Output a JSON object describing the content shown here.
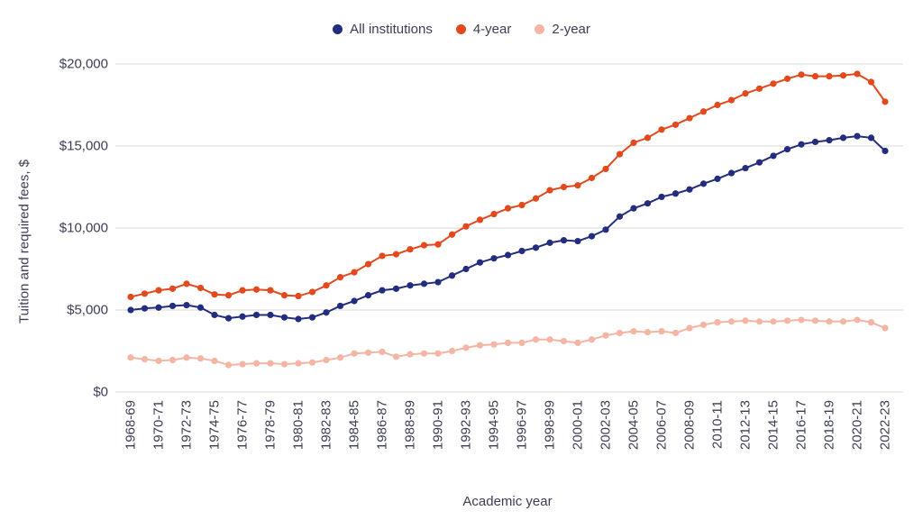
{
  "chart_data": {
    "type": "line",
    "title": "",
    "xlabel": "Academic year",
    "ylabel": "Tuition and required fees, $",
    "ylim": [
      0,
      20000
    ],
    "ytick_step": 5000,
    "ytick_labels": [
      "$0",
      "$5,000",
      "$10,000",
      "$15,000",
      "$20,000"
    ],
    "xtick_every": 2,
    "legend_position": "top",
    "grid": "horizontal",
    "colors": {
      "text": "#3c3c55",
      "grid": "#d9d9d9",
      "background": "#ffffff"
    },
    "x": [
      "1968-69",
      "1969-70",
      "1970-71",
      "1971-72",
      "1972-73",
      "1973-74",
      "1974-75",
      "1975-76",
      "1976-77",
      "1977-78",
      "1978-79",
      "1979-80",
      "1980-81",
      "1981-82",
      "1982-83",
      "1983-84",
      "1984-85",
      "1985-86",
      "1986-87",
      "1987-88",
      "1988-89",
      "1989-90",
      "1990-91",
      "1991-92",
      "1992-93",
      "1993-94",
      "1994-95",
      "1995-96",
      "1996-97",
      "1997-98",
      "1998-99",
      "1999-00",
      "2000-01",
      "2001-02",
      "2002-03",
      "2003-04",
      "2004-05",
      "2005-06",
      "2006-07",
      "2007-08",
      "2008-09",
      "2009-10",
      "2010-11",
      "2011-12",
      "2012-13",
      "2013-14",
      "2014-15",
      "2015-16",
      "2016-17",
      "2017-18",
      "2018-19",
      "2019-20",
      "2020-21",
      "2021-22",
      "2022-23"
    ],
    "series": [
      {
        "name": "All institutions",
        "color": "#232d7e",
        "values": [
          5000,
          5100,
          5150,
          5250,
          5300,
          5150,
          4700,
          4500,
          4600,
          4700,
          4700,
          4550,
          4450,
          4550,
          4850,
          5250,
          5550,
          5900,
          6200,
          6300,
          6500,
          6600,
          6700,
          7100,
          7500,
          7900,
          8150,
          8350,
          8600,
          8800,
          9100,
          9250,
          9200,
          9500,
          9900,
          10700,
          11200,
          11500,
          11900,
          12100,
          12350,
          12700,
          13000,
          13350,
          13650,
          14000,
          14400,
          14800,
          15100,
          15250,
          15350,
          15500,
          15600,
          15500,
          14700
        ]
      },
      {
        "name": "4-year",
        "color": "#e2491d",
        "values": [
          5800,
          6000,
          6200,
          6300,
          6600,
          6350,
          5950,
          5900,
          6200,
          6250,
          6200,
          5900,
          5850,
          6100,
          6500,
          7000,
          7300,
          7800,
          8300,
          8400,
          8700,
          8950,
          9000,
          9600,
          10100,
          10500,
          10850,
          11200,
          11400,
          11800,
          12300,
          12500,
          12600,
          13050,
          13600,
          14500,
          15200,
          15500,
          16000,
          16300,
          16700,
          17100,
          17500,
          17800,
          18200,
          18500,
          18800,
          19100,
          19350,
          19250,
          19250,
          19300,
          19400,
          18900,
          17700
        ]
      },
      {
        "name": "2-year",
        "color": "#f5b5a5",
        "values": [
          2100,
          2000,
          1900,
          1950,
          2100,
          2050,
          1900,
          1650,
          1700,
          1750,
          1750,
          1700,
          1750,
          1800,
          1950,
          2100,
          2350,
          2400,
          2450,
          2150,
          2300,
          2350,
          2350,
          2500,
          2700,
          2850,
          2900,
          3000,
          3000,
          3200,
          3200,
          3100,
          3000,
          3200,
          3450,
          3600,
          3700,
          3650,
          3700,
          3600,
          3900,
          4100,
          4250,
          4300,
          4350,
          4300,
          4300,
          4350,
          4400,
          4350,
          4300,
          4300,
          4400,
          4250,
          3900
        ]
      }
    ]
  }
}
